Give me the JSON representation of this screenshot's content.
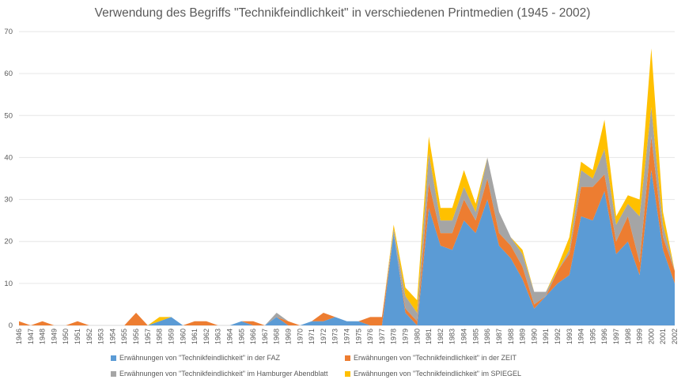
{
  "chart_data": {
    "type": "area",
    "stacked": true,
    "title": "Verwendung des Begriffs \"Technikfeindlichkeit\" in verschiedenen Printmedien (1945 - 2002)",
    "xlabel": "",
    "ylabel": "",
    "ylim": [
      0,
      70
    ],
    "yticks": [
      0,
      10,
      20,
      30,
      40,
      50,
      60,
      70
    ],
    "grid": true,
    "legend_position": "bottom",
    "x": [
      "1946",
      "1947",
      "1948",
      "1949",
      "1950",
      "1951",
      "1952",
      "1953",
      "1954",
      "1955",
      "1956",
      "1957",
      "1958",
      "1959",
      "1960",
      "1961",
      "1962",
      "1963",
      "1964",
      "1965",
      "1966",
      "1967",
      "1968",
      "1969",
      "1970",
      "1971",
      "1972",
      "1973",
      "1974",
      "1975",
      "1976",
      "1977",
      "1978",
      "1979",
      "1980",
      "1981",
      "1982",
      "1983",
      "1984",
      "1985",
      "1986",
      "1987",
      "1988",
      "1989",
      "1990",
      "1991",
      "1992",
      "1993",
      "1994",
      "1995",
      "1996",
      "1997",
      "1998",
      "1999",
      "2000",
      "2001",
      "2002"
    ],
    "series": [
      {
        "name": "Erwähnungen von \"Technikfeindlichkeit\" in der FAZ",
        "color": "#5B9BD5",
        "values": [
          0,
          0,
          0,
          0,
          0,
          0,
          0,
          0,
          0,
          0,
          0,
          0,
          1,
          2,
          0,
          0,
          0,
          0,
          0,
          1,
          0,
          0,
          2,
          0,
          0,
          1,
          1,
          2,
          1,
          1,
          0,
          0,
          22,
          3,
          0,
          28,
          19,
          18,
          25,
          22,
          30,
          19,
          16,
          11,
          4,
          7,
          10,
          12,
          26,
          25,
          32,
          17,
          20,
          12,
          37,
          18,
          10
        ]
      },
      {
        "name": "Erwähnungen von \"Technikfeindlichkeit\" in der ZEIT",
        "color": "#ED7D31",
        "values": [
          1,
          0,
          1,
          0,
          0,
          1,
          0,
          0,
          0,
          0,
          3,
          0,
          0,
          0,
          0,
          1,
          1,
          0,
          0,
          0,
          1,
          0,
          0,
          1,
          0,
          0,
          2,
          0,
          0,
          0,
          2,
          2,
          0,
          1,
          1,
          6,
          3,
          4,
          5,
          3,
          5,
          3,
          3,
          3,
          1,
          0,
          3,
          5,
          7,
          8,
          4,
          3,
          6,
          3,
          8,
          3,
          3
        ]
      },
      {
        "name": "Erwähnungen von \"Technikfeindlichkeit\" im Hamburger Abendblatt",
        "color": "#A5A5A5",
        "values": [
          0,
          0,
          0,
          0,
          0,
          0,
          0,
          0,
          0,
          0,
          0,
          0,
          0,
          0,
          0,
          0,
          0,
          0,
          0,
          0,
          0,
          0,
          1,
          0,
          0,
          0,
          0,
          0,
          0,
          0,
          0,
          0,
          1,
          3,
          2,
          7,
          3,
          3,
          3,
          2,
          5,
          5,
          2,
          3,
          3,
          1,
          0,
          1,
          4,
          2,
          6,
          4,
          3,
          11,
          7,
          3,
          0
        ]
      },
      {
        "name": "Erwähnungen von \"Technikfeindlichkeit\" im SPIEGEL",
        "color": "#FFC000",
        "values": [
          0,
          0,
          0,
          0,
          0,
          0,
          0,
          0,
          0,
          0,
          0,
          0,
          1,
          0,
          0,
          0,
          0,
          0,
          0,
          0,
          0,
          0,
          0,
          0,
          0,
          0,
          0,
          0,
          0,
          0,
          0,
          0,
          1,
          2,
          3,
          4,
          3,
          3,
          4,
          2,
          0,
          0,
          0,
          1,
          0,
          0,
          1,
          3,
          2,
          2,
          7,
          2,
          2,
          4,
          14,
          3,
          0
        ]
      }
    ]
  },
  "legend": {
    "faz": "Erwähnungen von \"Technikfeindlichkeit\" in der FAZ",
    "zeit": "Erwähnungen von \"Technikfeindlichkeit\" in der ZEIT",
    "abendblatt": "Erwähnungen von \"Technikfeindlichkeit\" im Hamburger Abendblatt",
    "spiegel": "Erwähnungen von \"Technikfeindlichkeit\" im SPIEGEL"
  }
}
